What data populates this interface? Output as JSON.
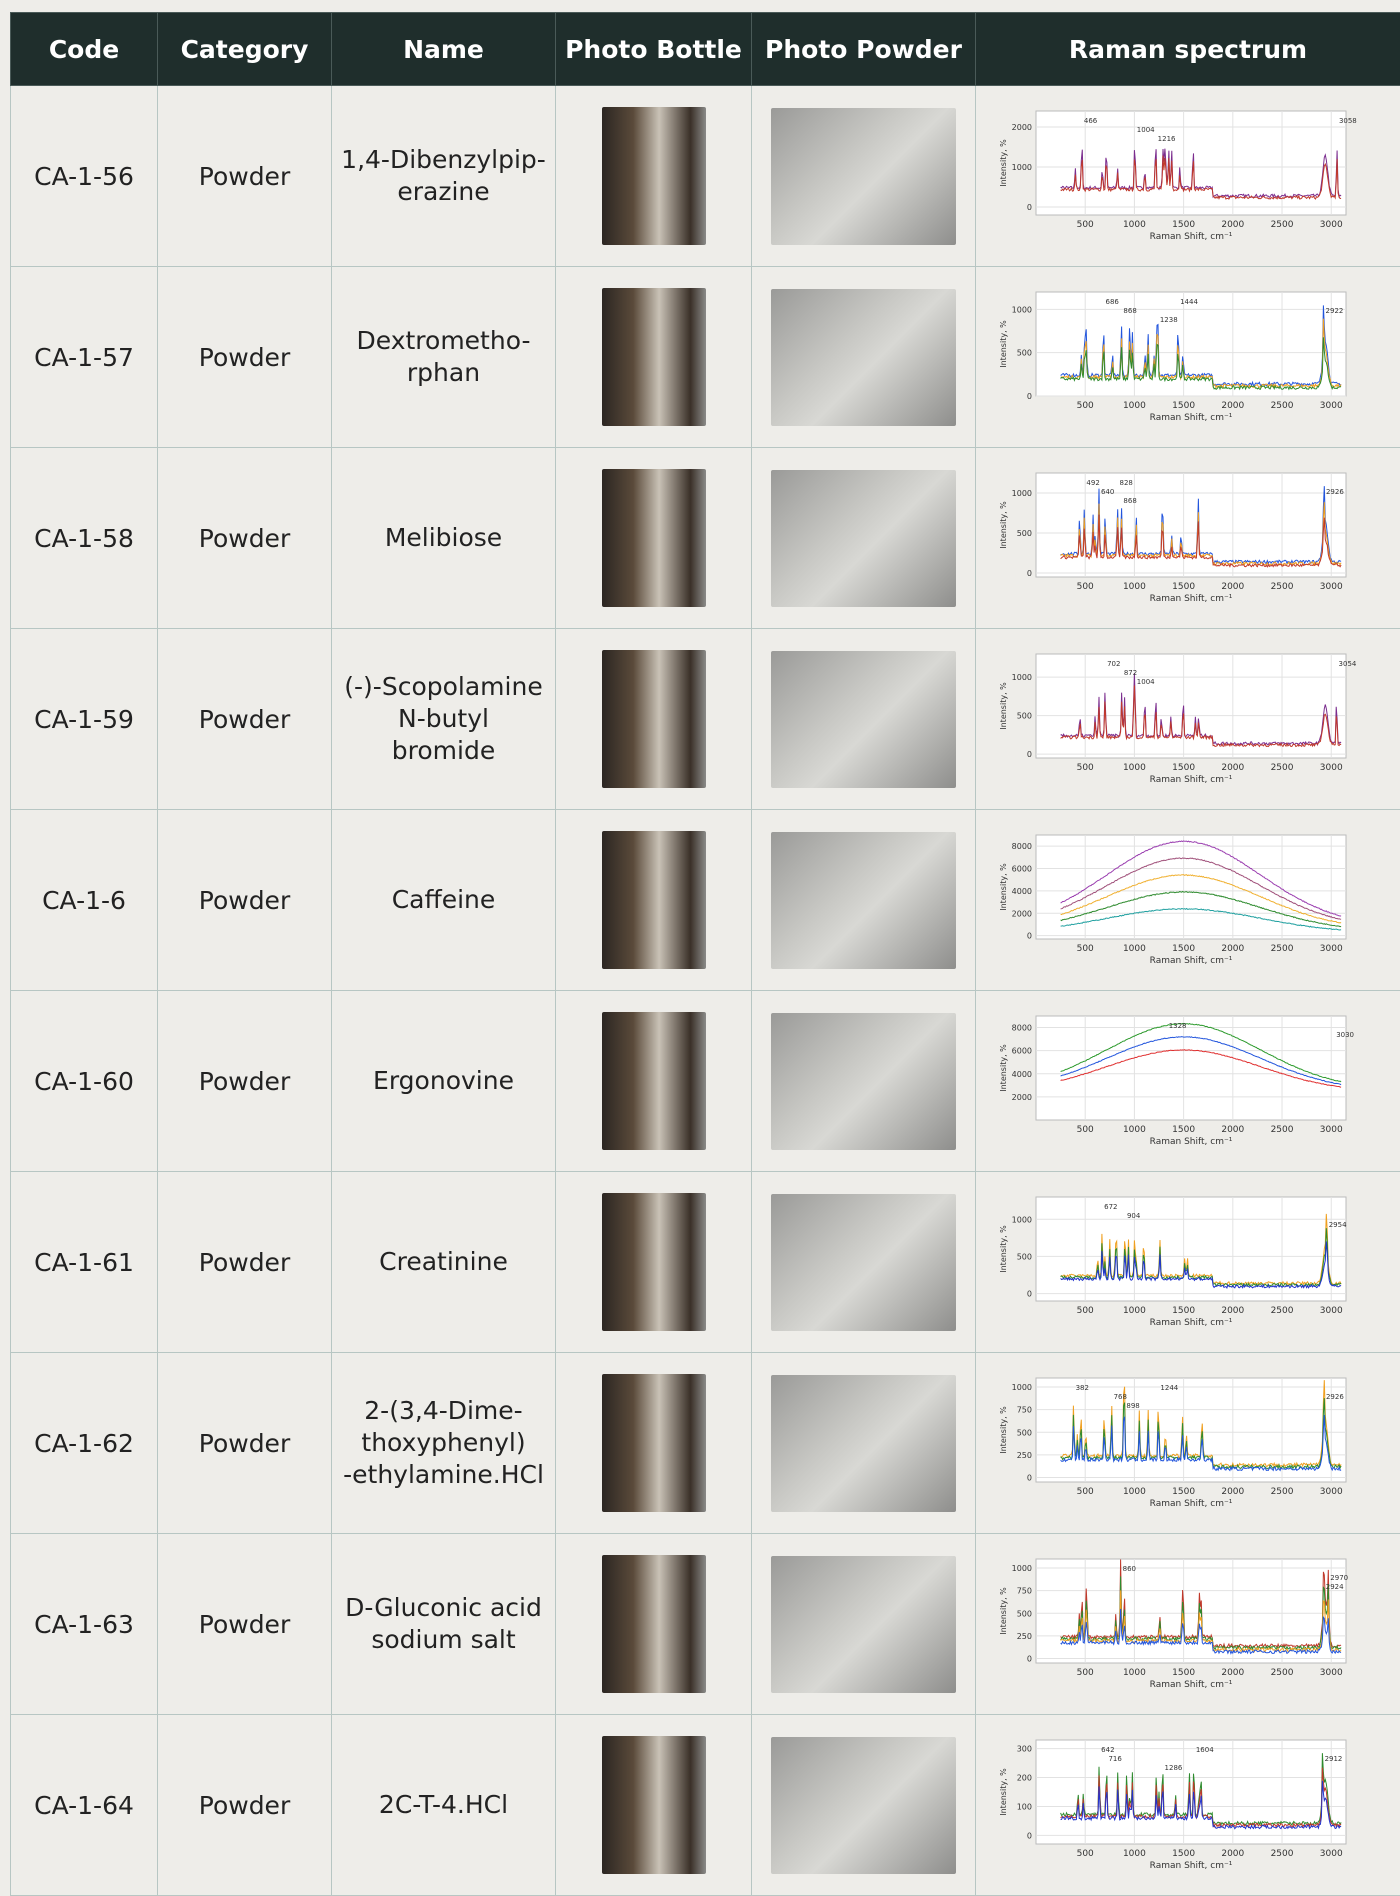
{
  "table": {
    "columns": [
      "Code",
      "Category",
      "Name",
      "Photo Bottle",
      "Photo Powder",
      "Raman spectrum"
    ],
    "rows": [
      {
        "code": "CA-1-56",
        "category": "Powder",
        "name": "1,4-Dibenzylpip-\nerazine",
        "spectrum": {
          "ylim": [
            -200,
            2400
          ],
          "yticks": [
            0,
            1000,
            2000
          ],
          "peaks": [
            "466",
            "1004",
            "1216",
            "3058"
          ]
        }
      },
      {
        "code": "CA-1-57",
        "category": "Powder",
        "name": "Dextrometho-\nrphan",
        "spectrum": {
          "ylim": [
            0,
            1200
          ],
          "yticks": [
            0,
            500,
            1000
          ],
          "peaks": [
            "686",
            "868",
            "1238",
            "1444",
            "2922"
          ]
        }
      },
      {
        "code": "CA-1-58",
        "category": "Powder",
        "name": "Melibiose",
        "spectrum": {
          "ylim": [
            -50,
            1250
          ],
          "yticks": [
            0,
            500,
            1000
          ],
          "peaks": [
            "492",
            "640",
            "868",
            "828",
            "2926"
          ]
        }
      },
      {
        "code": "CA-1-59",
        "category": "Powder",
        "name": "(-)-Scopolamine\nN-butyl\nbromide",
        "spectrum": {
          "ylim": [
            -50,
            1300
          ],
          "yticks": [
            0,
            500,
            1000
          ],
          "peaks": [
            "702",
            "872",
            "1004",
            "3054"
          ]
        }
      },
      {
        "code": "CA-1-6",
        "category": "Powder",
        "name": "Caffeine",
        "spectrum": {
          "ylim": [
            -300,
            9000
          ],
          "yticks": [
            0,
            2000,
            4000,
            6000,
            8000
          ],
          "peaks": []
        }
      },
      {
        "code": "CA-1-60",
        "category": "Powder",
        "name": "Ergonovine",
        "spectrum": {
          "ylim": [
            0,
            9000
          ],
          "yticks": [
            2000,
            4000,
            6000,
            8000
          ],
          "peaks": [
            "1328",
            "3030"
          ]
        }
      },
      {
        "code": "CA-1-61",
        "category": "Powder",
        "name": "Creatinine",
        "spectrum": {
          "ylim": [
            -100,
            1300
          ],
          "yticks": [
            0,
            500,
            1000
          ],
          "peaks": [
            "672",
            "904",
            "2954"
          ]
        }
      },
      {
        "code": "CA-1-62",
        "category": "Powder",
        "name": "2-(3,4-Dime-\nthoxyphenyl)\n-ethylamine.HCl",
        "spectrum": {
          "ylim": [
            -50,
            1100
          ],
          "yticks": [
            0,
            250,
            500,
            750,
            1000
          ],
          "peaks": [
            "382",
            "768",
            "898",
            "1244",
            "2926"
          ]
        }
      },
      {
        "code": "CA-1-63",
        "category": "Powder",
        "name": "D-Gluconic acid\nsodium salt",
        "spectrum": {
          "ylim": [
            -50,
            1100
          ],
          "yticks": [
            0,
            250,
            500,
            750,
            1000
          ],
          "peaks": [
            "860",
            "2970",
            "2924"
          ]
        }
      },
      {
        "code": "CA-1-64",
        "category": "Powder",
        "name": "2C-T-4.HCl",
        "spectrum": {
          "ylim": [
            -30,
            330
          ],
          "yticks": [
            0,
            100,
            200,
            300
          ],
          "peaks": [
            "642",
            "716",
            "1286",
            "1604",
            "2912"
          ]
        }
      }
    ]
  },
  "spectrum_axes": {
    "xlabel": "Raman Shift, cm⁻¹",
    "ylabel": "Intensity, %",
    "xlim": [
      0,
      3150
    ],
    "xticks": [
      500,
      1000,
      1500,
      2000,
      2500,
      3000
    ]
  }
}
